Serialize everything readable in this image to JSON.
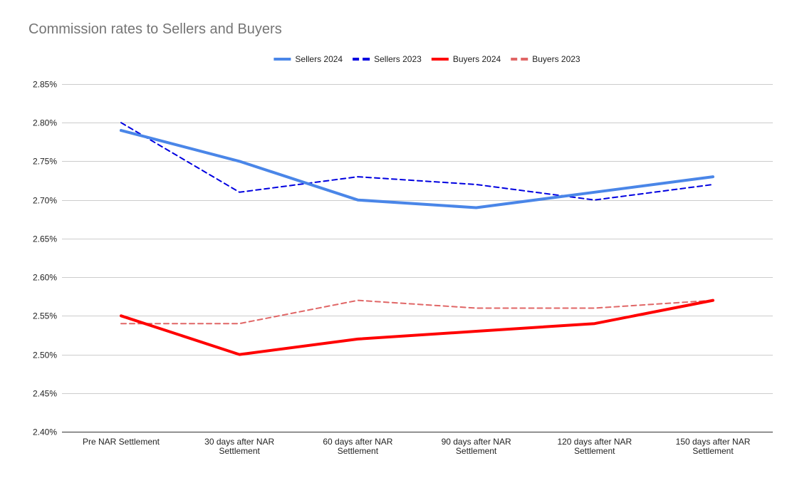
{
  "chart_data": {
    "type": "line",
    "title": "Commission rates to Sellers and Buyers",
    "xlabel": "",
    "ylabel": "",
    "categories": [
      [
        "Pre NAR Settlement"
      ],
      [
        "30 days after NAR",
        "Settlement"
      ],
      [
        "60 days after NAR",
        "Settlement"
      ],
      [
        "90 days after NAR",
        "Settlement"
      ],
      [
        "120 days after NAR",
        "Settlement"
      ],
      [
        "150 days after NAR",
        "Settlement"
      ]
    ],
    "ylim": [
      2.4,
      2.85
    ],
    "yticks": [
      2.4,
      2.45,
      2.5,
      2.55,
      2.6,
      2.65,
      2.7,
      2.75,
      2.8,
      2.85
    ],
    "ytick_format": "percent_2dp",
    "grid": true,
    "legend_position": "top",
    "series": [
      {
        "name": "Sellers 2024",
        "color": "#4a86e8",
        "dashed": false,
        "values": [
          2.79,
          2.75,
          2.7,
          2.69,
          2.71,
          2.73
        ]
      },
      {
        "name": "Sellers 2023",
        "color": "#0000e0",
        "dashed": true,
        "values": [
          2.8,
          2.71,
          2.73,
          2.72,
          2.7,
          2.72
        ]
      },
      {
        "name": "Buyers 2024",
        "color": "#ff0000",
        "dashed": false,
        "values": [
          2.55,
          2.5,
          2.52,
          2.53,
          2.54,
          2.57
        ]
      },
      {
        "name": "Buyers 2023",
        "color": "#e06666",
        "dashed": true,
        "values": [
          2.54,
          2.54,
          2.57,
          2.56,
          2.56,
          2.57
        ]
      }
    ]
  }
}
